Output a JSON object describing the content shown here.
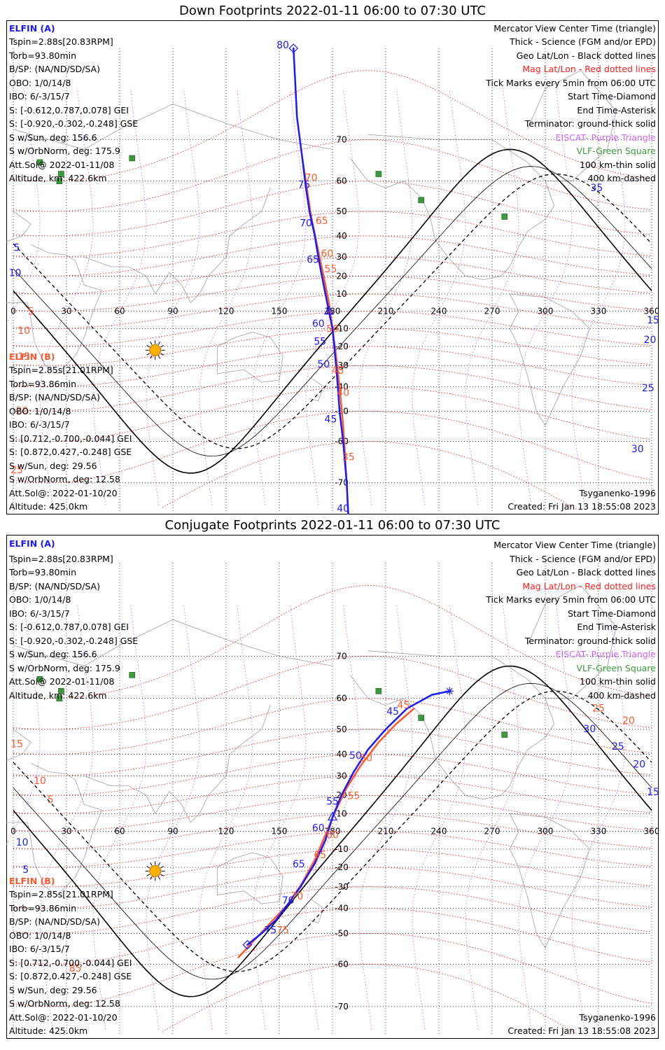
{
  "panels": [
    {
      "title": "Down Footprints 2022-01-11 06:00 to 07:30 UTC",
      "elfin_a": {
        "name": "ELFIN (A)",
        "lines": [
          "Tspin=2.88s[20.83RPM]",
          "Torb=93.80min",
          "B/SP: (NA/ND/SD/SA)",
          "OBO: 1/0/14/8",
          "IBO: 6/-3/15/7",
          "S: [-0.612,0.787,0.078] GEI",
          "S: [-0.920,-0.302,-0.248] GSE",
          "S w/Sun, deg: 156.6",
          "S w/OrbNorm, deg: 175.9",
          "Att.Sol@ 2022-01-11/08",
          "Altitude, km: 422.6km"
        ]
      },
      "elfin_b": {
        "name": "ELFIN (B)",
        "lines": [
          "Tspin=2.85s[21.01RPM]",
          "Torb=93.86min",
          "B/SP: (NA/ND/SD/SA)",
          "OBO: 1/0/14/8",
          "IBO: 6/-3/15/7",
          "S: [0.712,-0.700,-0.044] GEI",
          "S: [0.872,0.427,-0.248] GSE",
          "S w/Sun, deg: 29.56",
          "S w/OrbNorm, deg: 12.58",
          "Att.Sol@: 2022-01-10/20",
          "Altitude: 425.0km"
        ]
      },
      "legend": [
        "Mercator View Center Time (triangle)",
        "Thick - Science (FGM and/or EPD)",
        "Geo Lat/Lon - Black dotted lines",
        "Mag Lat/Lon - Red dotted lines",
        "Tick Marks every 5min from 06:00 UTC",
        "Start Time-Diamond",
        "End Time-Asterisk",
        "Terminator: ground-thick solid",
        "EISCAT- Purple Triangle",
        "VLF-Green Square",
        "100 km-thin solid",
        "400 km-dashed"
      ],
      "model": "Tsyganenko-1996",
      "created": "Created: Fri Jan 13 18:55:08 2023"
    },
    {
      "title": "Conjugate Footprints 2022-01-11 06:00 to 07:30 UTC",
      "elfin_a": {
        "name": "ELFIN (A)",
        "lines": [
          "Tspin=2.88s[20.83RPM]",
          "Torb=93.80min",
          "B/SP: (NA/ND/SD/SA)",
          "OBO: 1/0/14/8",
          "IBO: 6/-3/15/7",
          "S: [-0.612,0.787,0.078] GEI",
          "S: [-0.920,-0.302,-0.248] GSE",
          "S w/Sun, deg: 156.6",
          "S w/OrbNorm, deg: 175.9",
          "Att.Sol@ 2022-01-11/08",
          "Altitude, km: 422.6km"
        ]
      },
      "elfin_b": {
        "name": "ELFIN (B)",
        "lines": [
          "Tspin=2.85s[21.01RPM]",
          "Torb=93.86min",
          "B/SP: (NA/ND/SD/SA)",
          "OBO: 1/0/14/8",
          "IBO: 6/-3/15/7",
          "S: [0.712,-0.700,-0.044] GEI",
          "S: [0.872,0.427,-0.248] GSE",
          "S w/Sun, deg: 29.56",
          "S w/OrbNorm, deg: 12.58",
          "Att.Sol@: 2022-01-10/20",
          "Altitude: 425.0km"
        ]
      },
      "legend": [
        "Mercator View Center Time (triangle)",
        "Thick - Science (FGM and/or EPD)",
        "Geo Lat/Lon - Black dotted lines",
        "Mag Lat/Lon - Red dotted lines",
        "Tick Marks every 5min from 06:00 UTC",
        "Start Time-Diamond",
        "End Time-Asterisk",
        "Terminator: ground-thick solid",
        "EISCAT- Purple Triangle",
        "VLF-Green Square",
        "100 km-thin solid",
        "400 km-dashed"
      ],
      "model": "Tsyganenko-1996",
      "created": "Created: Fri Jan 13 18:55:08 2023"
    }
  ],
  "colors": {
    "elfin_a": "#1a1aff",
    "elfin_b": "#ff5a2e",
    "mag_grid": "#ff2020",
    "geo_grid": "#000000",
    "eiscat": "#cc66ff",
    "vlf": "#3c9a3c",
    "sun": "#ffb000",
    "coast": "#a0a0a0"
  },
  "chart_data": [
    {
      "type": "map-footprints",
      "title": "Down Footprints 2022-01-11 06:00 to 07:30 UTC",
      "projection": "mercator",
      "lon_range": [
        0,
        360
      ],
      "lat_range": [
        -75,
        82
      ],
      "lon_ticks": [
        0,
        30,
        60,
        90,
        120,
        150,
        180,
        210,
        240,
        270,
        300,
        330,
        360
      ],
      "lat_ticks": [
        -70,
        -60,
        -50,
        -40,
        -30,
        -20,
        -10,
        10,
        20,
        30,
        40,
        50,
        60,
        70
      ],
      "vlf_stations": [
        [
          67,
          66
        ],
        [
          27,
          62
        ],
        [
          15,
          65
        ],
        [
          26,
          60
        ],
        [
          206,
          62
        ],
        [
          230,
          54
        ],
        [
          277,
          48
        ]
      ],
      "sun_subpoint": [
        80,
        -22
      ],
      "elfin_a_track": [
        [
          158,
          82
        ],
        [
          160,
          74
        ],
        [
          163,
          66
        ],
        [
          165,
          58
        ],
        [
          167,
          50
        ],
        [
          170,
          40
        ],
        [
          172,
          30
        ],
        [
          174,
          20
        ],
        [
          176,
          10
        ],
        [
          178,
          0
        ],
        [
          180,
          -10
        ],
        [
          181,
          -20
        ],
        [
          182,
          -30
        ],
        [
          183,
          -40
        ],
        [
          184,
          -50
        ],
        [
          186,
          -60
        ],
        [
          188,
          -70
        ],
        [
          189,
          -76
        ]
      ],
      "elfin_a_tick_labels": [
        {
          "text": "80",
          "lon": 152,
          "lat": 82
        },
        {
          "text": "75",
          "lon": 164,
          "lat": 58
        },
        {
          "text": "70",
          "lon": 165,
          "lat": 44
        },
        {
          "text": "65",
          "lon": 169,
          "lat": 27
        },
        {
          "text": "60",
          "lon": 172,
          "lat": -9
        },
        {
          "text": "55",
          "lon": 173,
          "lat": -19
        },
        {
          "text": "50",
          "lon": 175,
          "lat": -31
        },
        {
          "text": "45",
          "lon": 179,
          "lat": -54
        },
        {
          "text": "40",
          "lon": 186,
          "lat": -75
        },
        {
          "text": "35",
          "lon": 329,
          "lat": 57
        },
        {
          "text": "30",
          "lon": 352,
          "lat": -63
        },
        {
          "text": "25",
          "lon": 358,
          "lat": -42
        },
        {
          "text": "20",
          "lon": 359,
          "lat": -18
        },
        {
          "text": "15",
          "lon": 363,
          "lat": -7
        },
        {
          "text": "10",
          "lon": 1,
          "lat": 20
        },
        {
          "text": "5",
          "lon": 2,
          "lat": 33
        }
      ],
      "elfin_b_track": [
        [
          163,
          66
        ],
        [
          168,
          48
        ],
        [
          172,
          33
        ],
        [
          175,
          20
        ],
        [
          178,
          5
        ],
        [
          180,
          -10
        ],
        [
          182,
          -25
        ],
        [
          184,
          -40
        ],
        [
          186,
          -55
        ],
        [
          188,
          -70
        ],
        [
          189,
          -76
        ]
      ],
      "elfin_b_tick_labels": [
        {
          "text": "70",
          "lon": 168,
          "lat": 60
        },
        {
          "text": "65",
          "lon": 174,
          "lat": 45
        },
        {
          "text": "60",
          "lon": 177,
          "lat": 30
        },
        {
          "text": "55",
          "lon": 179,
          "lat": 22
        },
        {
          "text": "50",
          "lon": 180,
          "lat": -12
        },
        {
          "text": "45",
          "lon": 183,
          "lat": -34
        },
        {
          "text": "40",
          "lon": 186,
          "lat": -44
        },
        {
          "text": "35",
          "lon": 189,
          "lat": -65
        },
        {
          "text": "5",
          "lon": 10,
          "lat": -2
        },
        {
          "text": "10",
          "lon": 6,
          "lat": -13
        },
        {
          "text": "15",
          "lon": 6,
          "lat": -27
        },
        {
          "text": "20",
          "lon": 5,
          "lat": -51
        },
        {
          "text": "25",
          "lon": 2,
          "lat": -68
        }
      ]
    },
    {
      "type": "map-footprints",
      "title": "Conjugate Footprints 2022-01-11 06:00 to 07:30 UTC",
      "projection": "mercator",
      "lon_range": [
        0,
        360
      ],
      "lat_range": [
        -75,
        82
      ],
      "lon_ticks": [
        0,
        30,
        60,
        90,
        120,
        150,
        180,
        210,
        240,
        270,
        300,
        330,
        360
      ],
      "lat_ticks": [
        -70,
        -60,
        -50,
        -40,
        -30,
        -20,
        -10,
        10,
        20,
        30,
        40,
        50,
        60,
        70
      ],
      "vlf_stations": [
        [
          67,
          66
        ],
        [
          27,
          62
        ],
        [
          15,
          65
        ],
        [
          26,
          60
        ],
        [
          206,
          62
        ],
        [
          230,
          54
        ],
        [
          277,
          48
        ]
      ],
      "sun_subpoint": [
        80,
        -22
      ],
      "elfin_a_track": [
        [
          132,
          -54
        ],
        [
          140,
          -50
        ],
        [
          148,
          -45
        ],
        [
          155,
          -38
        ],
        [
          162,
          -30
        ],
        [
          170,
          -18
        ],
        [
          176,
          -5
        ],
        [
          180,
          8
        ],
        [
          185,
          20
        ],
        [
          192,
          32
        ],
        [
          200,
          42
        ],
        [
          210,
          50
        ],
        [
          222,
          57
        ],
        [
          236,
          61
        ],
        [
          246,
          62
        ]
      ],
      "elfin_a_tick_labels": [
        {
          "text": "75",
          "lon": 145,
          "lat": -50
        },
        {
          "text": "70",
          "lon": 155,
          "lat": -38
        },
        {
          "text": "65",
          "lon": 161,
          "lat": -20
        },
        {
          "text": "60",
          "lon": 172,
          "lat": 0
        },
        {
          "text": "55",
          "lon": 180,
          "lat": 15
        },
        {
          "text": "50",
          "lon": 193,
          "lat": 38
        },
        {
          "text": "45",
          "lon": 214,
          "lat": 55
        },
        {
          "text": "25",
          "lon": 341,
          "lat": 42
        },
        {
          "text": "20",
          "lon": 353,
          "lat": 34
        },
        {
          "text": "15",
          "lon": 363,
          "lat": 20
        },
        {
          "text": "30",
          "lon": 325,
          "lat": 49
        },
        {
          "text": "10",
          "lon": 5,
          "lat": -8
        },
        {
          "text": "5",
          "lon": 7,
          "lat": -23
        }
      ],
      "elfin_b_track": [
        [
          127,
          -58
        ],
        [
          135,
          -53
        ],
        [
          145,
          -46
        ],
        [
          155,
          -38
        ],
        [
          163,
          -28
        ],
        [
          170,
          -16
        ],
        [
          176,
          -2
        ],
        [
          181,
          10
        ],
        [
          188,
          24
        ],
        [
          196,
          35
        ],
        [
          206,
          45
        ],
        [
          216,
          52
        ],
        [
          226,
          57
        ]
      ],
      "elfin_b_tick_labels": [
        {
          "text": "75",
          "lon": 152,
          "lat": -50
        },
        {
          "text": "70",
          "lon": 160,
          "lat": -36
        },
        {
          "text": "65",
          "lon": 173,
          "lat": -15
        },
        {
          "text": "60",
          "lon": 180,
          "lat": -4
        },
        {
          "text": "55",
          "lon": 192,
          "lat": 18
        },
        {
          "text": "50",
          "lon": 199,
          "lat": 37
        },
        {
          "text": "45",
          "lon": 220,
          "lat": 57
        },
        {
          "text": "15",
          "lon": 2,
          "lat": 43
        },
        {
          "text": "10",
          "lon": 15,
          "lat": 26
        },
        {
          "text": "5",
          "lon": 21,
          "lat": 16
        },
        {
          "text": "85",
          "lon": 35,
          "lat": -62
        },
        {
          "text": "20",
          "lon": 347,
          "lat": 52
        },
        {
          "text": "25",
          "lon": 330,
          "lat": 56
        }
      ]
    }
  ]
}
